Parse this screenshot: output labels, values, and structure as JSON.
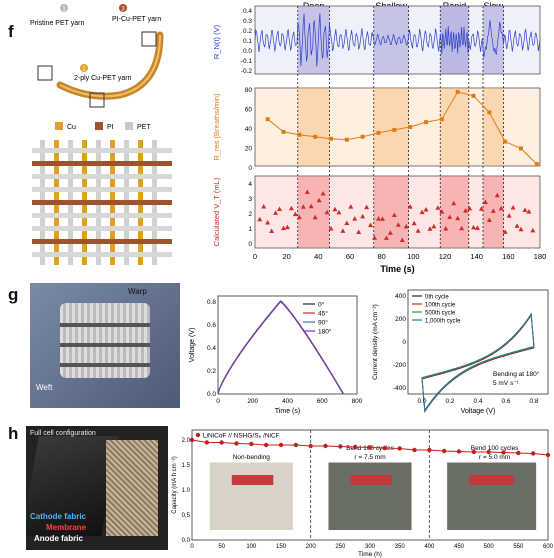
{
  "panels": {
    "f": "f",
    "g": "g",
    "h": "h"
  },
  "yarn_diagram": {
    "labels": {
      "pristine": "Pristine PET yarn",
      "pi_cu": "PI-Cu-PET yarn",
      "two_ply": "2-ply Cu-PET yarn"
    },
    "markers": [
      "1",
      "2",
      "3"
    ],
    "legend": [
      "Cu",
      "PI",
      "PET"
    ],
    "legend_colors": [
      "#e0a020",
      "#a0522d",
      "#c8c8c8"
    ]
  },
  "respiration": {
    "regions": [
      "Deep",
      "Shallow",
      "Rapid",
      "Slow"
    ],
    "xlabel": "Time (s)",
    "x_ticks": [
      "0",
      "20",
      "40",
      "60",
      "80",
      "100",
      "120",
      "140",
      "160",
      "180"
    ],
    "signal": {
      "ylabel": "R_N(t) (V)",
      "y_ticks": [
        "0.4",
        "0.3",
        "0.2",
        "0.1",
        "0.0",
        "-0.1",
        "-0.2"
      ]
    },
    "rate": {
      "ylabel": "R_res (Breaths/min)",
      "y_ticks": [
        "80",
        "60",
        "40",
        "20",
        "0"
      ],
      "x": [
        8,
        18,
        28,
        38,
        48,
        58,
        68,
        78,
        88,
        98,
        108,
        118,
        128,
        138,
        148,
        158,
        168,
        178
      ],
      "y": [
        48,
        35,
        32,
        30,
        28,
        27,
        30,
        34,
        37,
        40,
        45,
        48,
        76,
        72,
        55,
        25,
        18,
        2
      ]
    },
    "volume": {
      "ylabel": "Calculated V_T (mL)",
      "y_ticks": [
        "4",
        "3",
        "2",
        "1",
        "0"
      ]
    }
  },
  "photo_g": {
    "warp": "Warp",
    "weft": "Weft"
  },
  "gcd": {
    "type": "line",
    "xlabel": "Time (s)",
    "ylabel": "Voltage (V)",
    "x_ticks": [
      "0",
      "200",
      "400",
      "600",
      "800"
    ],
    "y_ticks": [
      "0.0",
      "0.2",
      "0.4",
      "0.6",
      "0.8"
    ],
    "legend": [
      "0°",
      "45°",
      "90°",
      "180°"
    ],
    "colors": [
      "#222222",
      "#d62728",
      "#1f77b4",
      "#7b2fbf"
    ]
  },
  "cv": {
    "type": "line",
    "xlabel": "Voltage (V)",
    "ylabel": "Current density (mA cm⁻²)",
    "x_ticks": [
      "0.0",
      "0.2",
      "0.4",
      "0.6",
      "0.8"
    ],
    "y_ticks": [
      "400",
      "200",
      "0",
      "-200",
      "-400"
    ],
    "legend": [
      "0th cycle",
      "100th cycle",
      "500th cycle",
      "1,000th cycle"
    ],
    "colors": [
      "#222222",
      "#d62728",
      "#2ca02c",
      "#1f77b4"
    ],
    "annotation1": "Bending at 180°",
    "annotation2": "5 mV s⁻¹"
  },
  "photo_h": {
    "title": "Full cell configuration",
    "cathode": "Cathode fabric",
    "membrane": "Membrane",
    "anode": "Anode fabric"
  },
  "cycling": {
    "type": "line",
    "legend": "LiNiCoF // NSHG/S₈ /NiCF",
    "xlabel": "Time (h)",
    "ylabel": "Capacity (mA h cm⁻²)",
    "x_ticks": [
      "0",
      "50",
      "100",
      "150",
      "200",
      "250",
      "300",
      "350",
      "400",
      "450",
      "500",
      "550",
      "600"
    ],
    "y_ticks": [
      "2.0",
      "1.5",
      "1.0",
      "0.5",
      "0.0"
    ],
    "x": [
      0,
      25,
      50,
      75,
      100,
      125,
      150,
      175,
      200,
      225,
      250,
      275,
      300,
      325,
      350,
      375,
      400,
      425,
      450,
      475,
      500,
      525,
      550,
      575,
      600
    ],
    "y": [
      2.0,
      1.95,
      1.95,
      1.93,
      1.92,
      1.9,
      1.9,
      1.9,
      1.88,
      1.88,
      1.87,
      1.86,
      1.85,
      1.84,
      1.83,
      1.8,
      1.8,
      1.78,
      1.77,
      1.76,
      1.76,
      1.75,
      1.74,
      1.73,
      1.7
    ],
    "stage_labels": [
      "Non-bending",
      "Bend 100 cycles",
      "Bend 100 cycles"
    ],
    "radius_labels": [
      "r = 7.5 mm",
      "r = 5.0 mm"
    ]
  }
}
